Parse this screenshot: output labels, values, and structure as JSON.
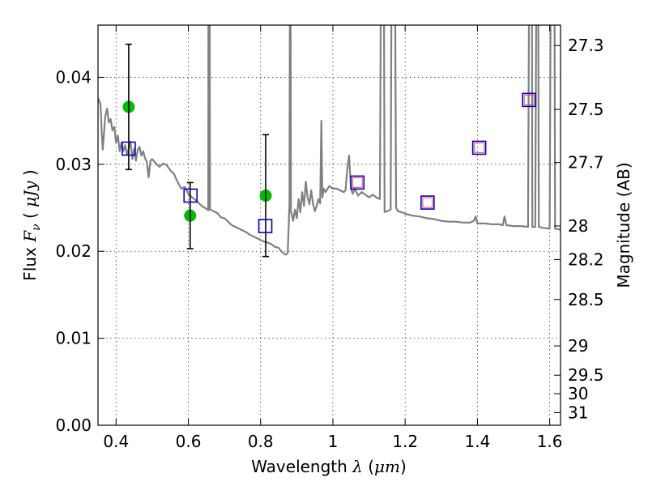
{
  "chart_data": {
    "type": "scatter",
    "xlabel": "Wavelength  λ (μm)",
    "ylabel": "Flux  F_ν  ( μJy )",
    "ylabel_parts": {
      "pre": "Flux  ",
      "var": "F",
      "sub": "ν",
      "mid": "  ( ",
      "unit": "μJy",
      "post": " )"
    },
    "xlabel_parts": {
      "pre": "Wavelength  ",
      "var": "λ",
      "mid": " (",
      "unit": "μm",
      "post": ")"
    },
    "y2label": "Magnitude (AB)",
    "xlim": [
      0.35,
      1.63
    ],
    "ylim": [
      0.0,
      0.046
    ],
    "grid": true,
    "x_ticks": [
      {
        "value": 0.4,
        "label": "0.4"
      },
      {
        "value": 0.6,
        "label": "0.6"
      },
      {
        "value": 0.8,
        "label": "0.8"
      },
      {
        "value": 1.0,
        "label": "1"
      },
      {
        "value": 1.2,
        "label": "1.2"
      },
      {
        "value": 1.4,
        "label": "1.4"
      },
      {
        "value": 1.6,
        "label": "1.6"
      }
    ],
    "y_ticks": [
      {
        "value": 0.0,
        "label": "0.00"
      },
      {
        "value": 0.01,
        "label": "0.01"
      },
      {
        "value": 0.02,
        "label": "0.02"
      },
      {
        "value": 0.03,
        "label": "0.03"
      },
      {
        "value": 0.04,
        "label": "0.04"
      }
    ],
    "y2_ticks": [
      {
        "label": "27.3",
        "mag": 27.3
      },
      {
        "label": "27.5",
        "mag": 27.5
      },
      {
        "label": "27.7",
        "mag": 27.7
      },
      {
        "label": "28",
        "mag": 28.0
      },
      {
        "label": "28.2",
        "mag": 28.2
      },
      {
        "label": "28.5",
        "mag": 28.5
      },
      {
        "label": "29",
        "mag": 29.0
      },
      {
        "label": "29.5",
        "mag": 29.5
      },
      {
        "label": "30",
        "mag": 30.0
      },
      {
        "label": "31",
        "mag": 31.0
      }
    ],
    "series": [
      {
        "kind": "line",
        "color": "#808080",
        "points": [
          [
            0.35,
            0.0376
          ],
          [
            0.357,
            0.0369
          ],
          [
            0.36,
            0.0338
          ],
          [
            0.363,
            0.0317
          ],
          [
            0.366,
            0.0332
          ],
          [
            0.37,
            0.0355
          ],
          [
            0.375,
            0.0364
          ],
          [
            0.38,
            0.0348
          ],
          [
            0.385,
            0.0352
          ],
          [
            0.39,
            0.0339
          ],
          [
            0.395,
            0.0343
          ],
          [
            0.4,
            0.0325
          ],
          [
            0.405,
            0.0333
          ],
          [
            0.41,
            0.0315
          ],
          [
            0.415,
            0.0325
          ],
          [
            0.42,
            0.0315
          ],
          [
            0.425,
            0.0322
          ],
          [
            0.43,
            0.0311
          ],
          [
            0.435,
            0.0318
          ],
          [
            0.44,
            0.0326
          ],
          [
            0.445,
            0.0306
          ],
          [
            0.45,
            0.0318
          ],
          [
            0.455,
            0.0304
          ],
          [
            0.46,
            0.0317
          ],
          [
            0.465,
            0.032
          ],
          [
            0.47,
            0.031
          ],
          [
            0.475,
            0.0315
          ],
          [
            0.48,
            0.0307
          ],
          [
            0.485,
            0.0303
          ],
          [
            0.49,
            0.0285
          ],
          [
            0.495,
            0.0304
          ],
          [
            0.5,
            0.0306
          ],
          [
            0.51,
            0.0301
          ],
          [
            0.52,
            0.0297
          ],
          [
            0.53,
            0.0301
          ],
          [
            0.54,
            0.0299
          ],
          [
            0.55,
            0.0293
          ],
          [
            0.56,
            0.0289
          ],
          [
            0.57,
            0.028
          ],
          [
            0.58,
            0.0272
          ],
          [
            0.59,
            0.0274
          ],
          [
            0.6,
            0.0266
          ],
          [
            0.61,
            0.0262
          ],
          [
            0.62,
            0.0259
          ],
          [
            0.63,
            0.0255
          ],
          [
            0.64,
            0.0251
          ],
          [
            0.65,
            0.0249
          ],
          [
            0.655,
            0.0247
          ],
          [
            0.6563,
            0.07
          ],
          [
            0.658,
            0.07
          ],
          [
            0.66,
            0.0248
          ],
          [
            0.67,
            0.0246
          ],
          [
            0.68,
            0.0244
          ],
          [
            0.69,
            0.0239
          ],
          [
            0.7,
            0.0238
          ],
          [
            0.71,
            0.0234
          ],
          [
            0.72,
            0.023
          ],
          [
            0.73,
            0.0228
          ],
          [
            0.74,
            0.0226
          ],
          [
            0.75,
            0.0224
          ],
          [
            0.76,
            0.0222
          ],
          [
            0.77,
            0.0219
          ],
          [
            0.78,
            0.0217
          ],
          [
            0.79,
            0.0215
          ],
          [
            0.8,
            0.0213
          ],
          [
            0.81,
            0.0211
          ],
          [
            0.82,
            0.021
          ],
          [
            0.83,
            0.0208
          ],
          [
            0.84,
            0.0205
          ],
          [
            0.85,
            0.0204
          ],
          [
            0.855,
            0.0201
          ],
          [
            0.86,
            0.0199
          ],
          [
            0.865,
            0.0197
          ],
          [
            0.87,
            0.0196
          ],
          [
            0.875,
            0.0198
          ],
          [
            0.88,
            0.0255
          ],
          [
            0.882,
            0.07
          ],
          [
            0.884,
            0.0246
          ],
          [
            0.89,
            0.0235
          ],
          [
            0.895,
            0.0248
          ],
          [
            0.9,
            0.0238
          ],
          [
            0.905,
            0.026
          ],
          [
            0.91,
            0.0245
          ],
          [
            0.915,
            0.0268
          ],
          [
            0.92,
            0.0252
          ],
          [
            0.925,
            0.028
          ],
          [
            0.93,
            0.0262
          ],
          [
            0.935,
            0.0254
          ],
          [
            0.94,
            0.027
          ],
          [
            0.945,
            0.0255
          ],
          [
            0.95,
            0.0246
          ],
          [
            0.955,
            0.0252
          ],
          [
            0.96,
            0.026
          ],
          [
            0.965,
            0.0255
          ],
          [
            0.968,
            0.035
          ],
          [
            0.971,
            0.0262
          ],
          [
            0.975,
            0.0272
          ],
          [
            0.98,
            0.0268
          ],
          [
            0.99,
            0.0275
          ],
          [
            1.0,
            0.0272
          ],
          [
            1.01,
            0.0272
          ],
          [
            1.02,
            0.027
          ],
          [
            1.03,
            0.0268
          ],
          [
            1.035,
            0.027
          ],
          [
            1.04,
            0.0295
          ],
          [
            1.045,
            0.031
          ],
          [
            1.05,
            0.0272
          ],
          [
            1.055,
            0.0266
          ],
          [
            1.06,
            0.0272
          ],
          [
            1.07,
            0.0264
          ],
          [
            1.08,
            0.0268
          ],
          [
            1.09,
            0.0265
          ],
          [
            1.1,
            0.0262
          ],
          [
            1.11,
            0.0265
          ],
          [
            1.12,
            0.0262
          ],
          [
            1.13,
            0.026
          ],
          [
            1.135,
            0.07
          ],
          [
            1.14,
            0.07
          ],
          [
            1.143,
            0.0245
          ],
          [
            1.15,
            0.0246
          ],
          [
            1.16,
            0.0248
          ],
          [
            1.164,
            0.07
          ],
          [
            1.17,
            0.07
          ],
          [
            1.175,
            0.025
          ],
          [
            1.18,
            0.0246
          ],
          [
            1.19,
            0.0245
          ],
          [
            1.2,
            0.0243
          ],
          [
            1.22,
            0.0241
          ],
          [
            1.24,
            0.024
          ],
          [
            1.26,
            0.0238
          ],
          [
            1.28,
            0.0237
          ],
          [
            1.3,
            0.0235
          ],
          [
            1.32,
            0.0234
          ],
          [
            1.34,
            0.0234
          ],
          [
            1.36,
            0.0233
          ],
          [
            1.38,
            0.0233
          ],
          [
            1.39,
            0.0235
          ],
          [
            1.395,
            0.024
          ],
          [
            1.4,
            0.0232
          ],
          [
            1.42,
            0.0232
          ],
          [
            1.44,
            0.0231
          ],
          [
            1.46,
            0.0231
          ],
          [
            1.47,
            0.023
          ],
          [
            1.475,
            0.024
          ],
          [
            1.48,
            0.023
          ],
          [
            1.5,
            0.0229
          ],
          [
            1.52,
            0.0229
          ],
          [
            1.54,
            0.0228
          ],
          [
            1.545,
            0.07
          ],
          [
            1.55,
            0.07
          ],
          [
            1.552,
            0.0228
          ],
          [
            1.56,
            0.0228
          ],
          [
            1.565,
            0.07
          ],
          [
            1.567,
            0.07
          ],
          [
            1.57,
            0.0228
          ],
          [
            1.58,
            0.0227
          ],
          [
            1.6,
            0.0226
          ],
          [
            1.605,
            0.07
          ],
          [
            1.612,
            0.07
          ],
          [
            1.615,
            0.0226
          ],
          [
            1.63,
            0.0225
          ]
        ]
      },
      {
        "kind": "points",
        "marker": "circle",
        "color": "#00bb00",
        "points": [
          [
            0.435,
            0.0366
          ],
          [
            0.605,
            0.0241
          ],
          [
            0.814,
            0.0264
          ]
        ]
      },
      {
        "kind": "errorbars",
        "color": "#000000",
        "points": [
          {
            "x": 0.435,
            "low": 0.0294,
            "high": 0.0438
          },
          {
            "x": 0.605,
            "low": 0.0203,
            "high": 0.0279
          },
          {
            "x": 0.814,
            "low": 0.0194,
            "high": 0.0334
          }
        ]
      },
      {
        "kind": "points",
        "marker": "square-open",
        "color": "#0000cc",
        "points": [
          [
            0.435,
            0.0318
          ],
          [
            0.606,
            0.0264
          ],
          [
            0.813,
            0.0229
          ],
          [
            1.068,
            0.0279
          ],
          [
            1.262,
            0.0256
          ],
          [
            1.405,
            0.0319
          ],
          [
            1.543,
            0.0374
          ]
        ]
      },
      {
        "kind": "points",
        "marker": "square-small-open",
        "color": "#ff4444",
        "points": [
          [
            1.068,
            0.0279
          ],
          [
            1.262,
            0.0256
          ],
          [
            1.405,
            0.0319
          ],
          [
            1.543,
            0.0374
          ]
        ]
      }
    ]
  }
}
